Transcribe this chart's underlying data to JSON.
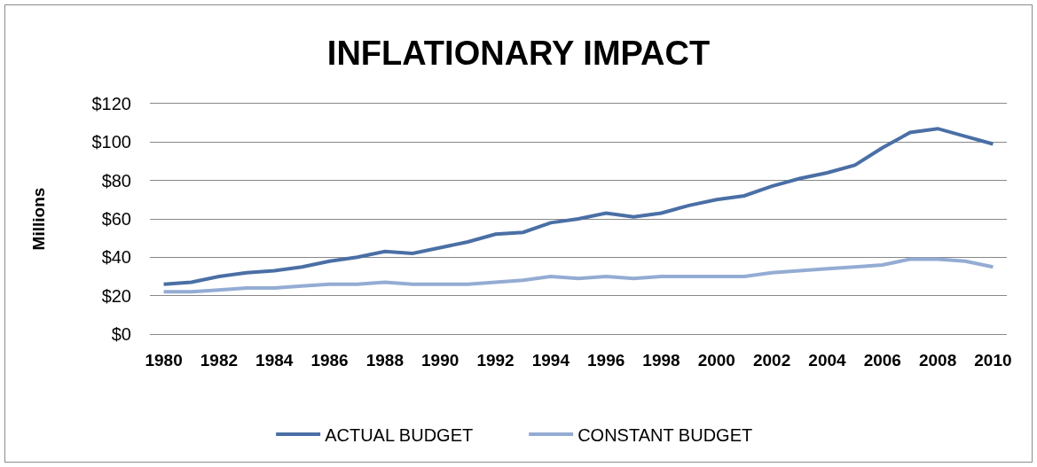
{
  "chart_data": {
    "type": "line",
    "title": "INFLATIONARY IMPACT",
    "ylabel": "Millions",
    "x": [
      1980,
      1981,
      1982,
      1983,
      1984,
      1985,
      1986,
      1987,
      1988,
      1989,
      1990,
      1991,
      1992,
      1993,
      1994,
      1995,
      1996,
      1997,
      1998,
      1999,
      2000,
      2001,
      2002,
      2003,
      2004,
      2005,
      2006,
      2007,
      2008,
      2009,
      2010
    ],
    "series": [
      {
        "name": "ACTUAL BUDGET",
        "color": "#4a6fa5",
        "values": [
          26,
          27,
          30,
          32,
          33,
          35,
          38,
          40,
          43,
          42,
          45,
          48,
          52,
          53,
          58,
          60,
          63,
          61,
          63,
          67,
          70,
          72,
          77,
          81,
          84,
          88,
          97,
          105,
          107,
          103,
          99
        ]
      },
      {
        "name": "CONSTANT BUDGET",
        "color": "#94acd3",
        "values": [
          22,
          22,
          23,
          24,
          24,
          25,
          26,
          26,
          27,
          26,
          26,
          26,
          27,
          28,
          30,
          29,
          30,
          29,
          30,
          30,
          30,
          30,
          32,
          33,
          34,
          35,
          36,
          39,
          39,
          38,
          35
        ]
      }
    ],
    "xlim": [
      1979.5,
      2010.5
    ],
    "xticks": [
      1980,
      1982,
      1984,
      1986,
      1988,
      1990,
      1992,
      1994,
      1996,
      1998,
      2000,
      2002,
      2004,
      2006,
      2008,
      2010
    ],
    "ylim": [
      0,
      120
    ],
    "yticks": [
      {
        "value": 0,
        "label": "$0"
      },
      {
        "value": 20,
        "label": "$20"
      },
      {
        "value": 40,
        "label": "$40"
      },
      {
        "value": 60,
        "label": "$60"
      },
      {
        "value": 80,
        "label": "$80"
      },
      {
        "value": 100,
        "label": "$100"
      },
      {
        "value": 120,
        "label": "$120"
      }
    ],
    "grid": "y",
    "legend": "bottom"
  }
}
